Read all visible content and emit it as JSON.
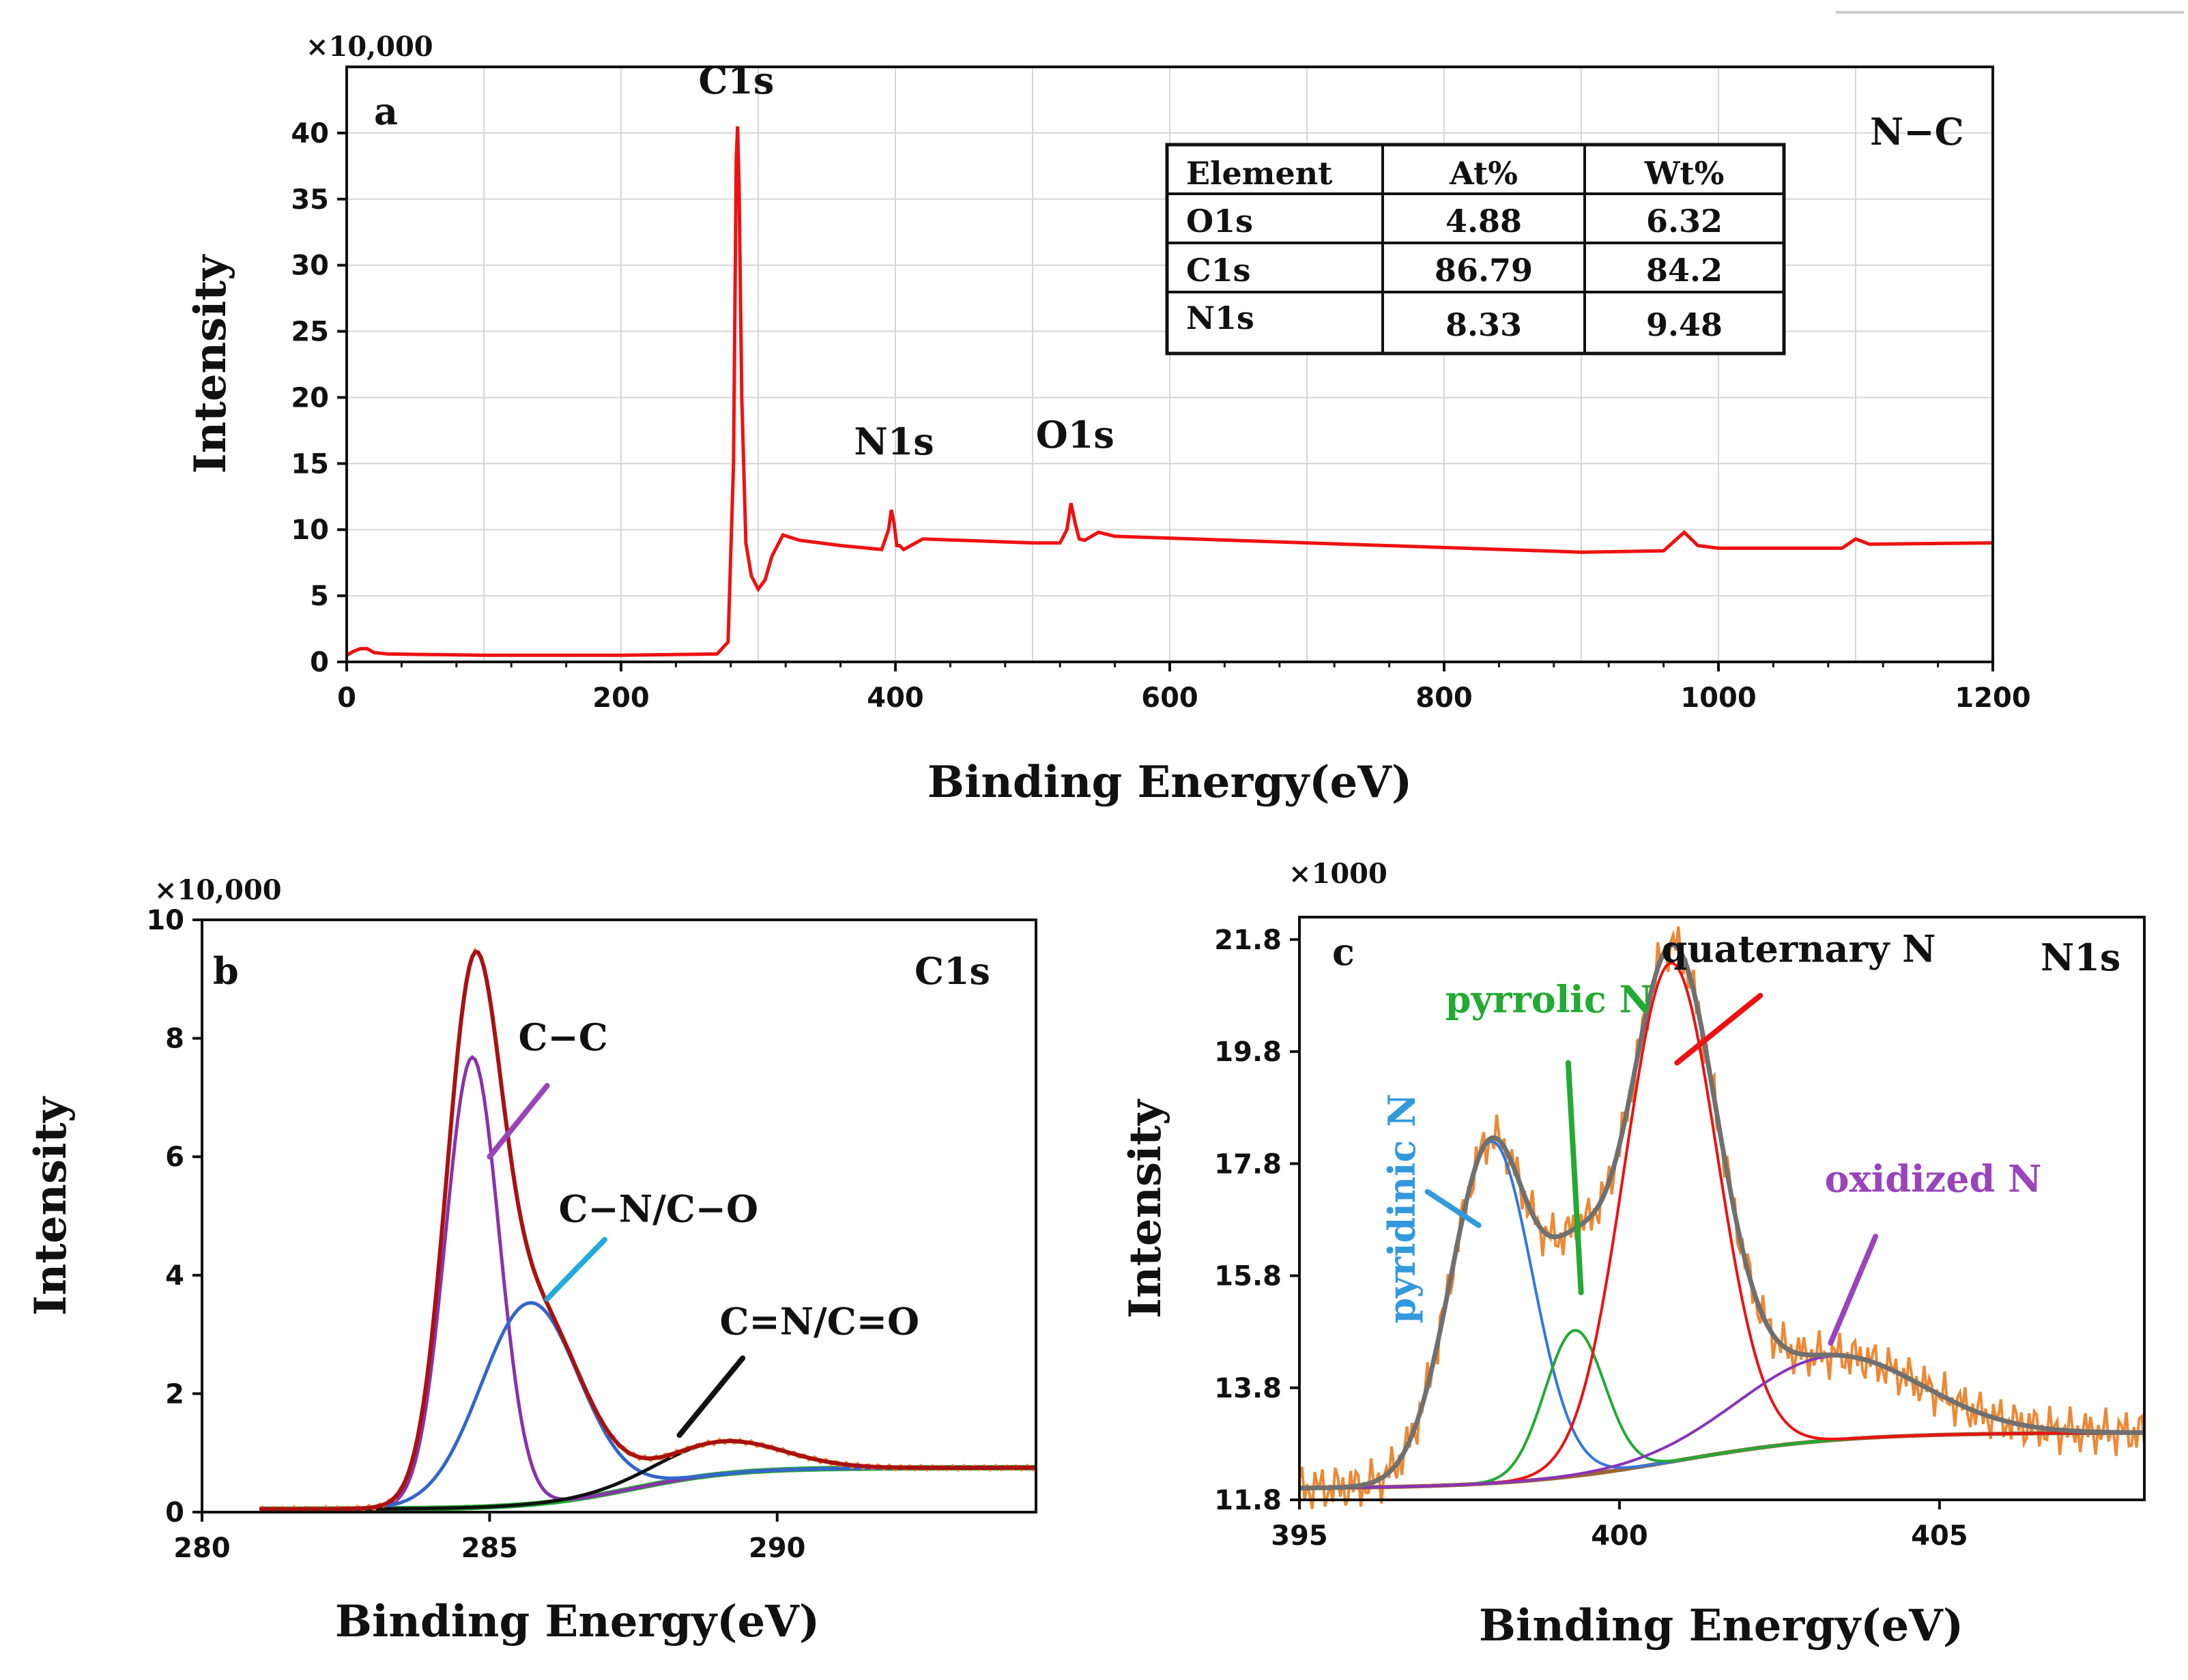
{
  "colors": {
    "survey": "#ee1111",
    "raw": "#ee8833",
    "envelope_c1s": "#aa1111",
    "envelope_n1s": "#707070",
    "cc": "#8833aa",
    "cn": "#3366cc",
    "cdn": "#22aa33",
    "pyridinic": "#3377dd",
    "pyrrolic": "#22aa33",
    "quaternary": "#ee1111",
    "oxidized": "#8833bb",
    "background_c1s": "#22aa33",
    "background_n1s": "#996633",
    "arrow_cc": "#9944bb",
    "arrow_cn": "#22aadd",
    "arrow_cdn": "#111111",
    "label_pyridinic": "#3399dd",
    "label_pyrrolic": "#22aa33",
    "label_quaternary": "#111111",
    "label_oxidized": "#9944bb"
  },
  "chart_data": [
    {
      "id": "a",
      "type": "line",
      "panel_label": "a",
      "sample_label": "N−C",
      "scale_label": "×10,000",
      "xlabel": "Binding Energy(eV)",
      "ylabel": "Intensity",
      "xlim": [
        0,
        1200
      ],
      "ylim": [
        0,
        45
      ],
      "xticks": [
        0,
        200,
        400,
        600,
        800,
        1000,
        1200
      ],
      "yticks": [
        0,
        5,
        10,
        15,
        20,
        25,
        30,
        35,
        40
      ],
      "series": [
        {
          "name": "survey",
          "x": [
            0,
            5,
            10,
            15,
            20,
            30,
            100,
            200,
            270,
            278,
            282,
            284,
            285,
            286,
            288,
            291,
            295,
            300,
            305,
            310,
            318,
            330,
            360,
            390,
            395,
            397,
            399,
            401,
            403,
            406,
            420,
            500,
            520,
            525,
            528,
            531,
            534,
            538,
            548,
            560,
            700,
            900,
            960,
            975,
            985,
            1000,
            1090,
            1100,
            1110,
            1200
          ],
          "y": [
            0.5,
            0.8,
            1.0,
            1.0,
            0.7,
            0.6,
            0.5,
            0.5,
            0.6,
            1.5,
            15,
            38,
            40.5,
            36,
            20,
            9,
            6.5,
            5.5,
            6.2,
            8.0,
            9.6,
            9.2,
            8.8,
            8.5,
            10.0,
            11.5,
            10.5,
            8.8,
            8.8,
            8.5,
            9.3,
            9.0,
            9.0,
            10.0,
            12.0,
            10.5,
            9.3,
            9.2,
            9.8,
            9.5,
            9.0,
            8.3,
            8.4,
            9.8,
            8.8,
            8.6,
            8.6,
            9.3,
            8.9,
            9.0
          ]
        }
      ],
      "annotations": [
        {
          "text": "C1s",
          "x": 284,
          "y": 43
        },
        {
          "text": "N1s",
          "x": 399,
          "y": 15.7
        },
        {
          "text": "O1s",
          "x": 531,
          "y": 16.2
        }
      ],
      "table": {
        "headers": [
          "Element",
          "At%",
          "Wt%"
        ],
        "rows": [
          [
            "O1s",
            "4.88",
            "6.32"
          ],
          [
            "C1s",
            "86.79",
            "84.2"
          ],
          [
            "N1s",
            "8.33",
            "9.48"
          ]
        ]
      }
    },
    {
      "id": "b",
      "type": "line",
      "panel_label": "b",
      "peak_label": "C1s",
      "scale_label": "×10,000",
      "xlabel": "Binding Energy(eV)",
      "ylabel": "Intensity",
      "xlim": [
        280,
        294.5
      ],
      "ylim": [
        0,
        10
      ],
      "xticks": [
        280,
        285,
        290
      ],
      "yticks": [
        0,
        2,
        4,
        6,
        8,
        10
      ],
      "background": {
        "start_x": 281,
        "start_y": 0.05,
        "end_y": 0.75,
        "center": 287.5,
        "width": 0.9
      },
      "components": [
        {
          "name": "C−C",
          "center": 284.7,
          "height": 7.6,
          "fwhm": 1.1
        },
        {
          "name": "C−N/C−O",
          "center": 285.7,
          "height": 3.4,
          "fwhm": 2.0
        },
        {
          "name": "C=N/C=O",
          "center": 289.0,
          "height": 0.55,
          "fwhm": 2.5
        }
      ],
      "annotations": [
        {
          "text": "C−C",
          "label_x": 285.5,
          "label_y": 7.8,
          "arrow_from": [
            286.0,
            7.2
          ],
          "arrow_to": [
            285.0,
            6.0
          ]
        },
        {
          "text": "C−N/C−O",
          "label_x": 286.2,
          "label_y": 4.9,
          "arrow_from": [
            287.0,
            4.6
          ],
          "arrow_to": [
            286.0,
            3.6
          ]
        },
        {
          "text": "C=N/C=O",
          "label_x": 289.0,
          "label_y": 3.0,
          "arrow_from": [
            289.4,
            2.6
          ],
          "arrow_to": [
            288.3,
            1.3
          ]
        }
      ]
    },
    {
      "id": "c",
      "type": "line",
      "panel_label": "c",
      "peak_label": "N1s",
      "scale_label": "×1000",
      "xlabel": "Binding Energy(eV)",
      "ylabel": "Intensity",
      "xlim": [
        395,
        408.2
      ],
      "ylim": [
        11.8,
        22.2
      ],
      "xticks": [
        395,
        400,
        405
      ],
      "yticks": [
        11.8,
        13.8,
        15.8,
        17.8,
        19.8,
        21.8
      ],
      "ytick_labels": [
        "11.8",
        "13.8",
        "15.8",
        "17.8",
        "19.8",
        "21.8"
      ],
      "background": {
        "start_x": 395,
        "start_y": 12.0,
        "end_y": 13.0,
        "center": 400.9,
        "width": 1.3
      },
      "components": [
        {
          "name": "pyridinic N",
          "center": 398.0,
          "height": 6.1,
          "fwhm": 1.5
        },
        {
          "name": "pyrrolic N",
          "center": 399.3,
          "height": 2.6,
          "fwhm": 1.1
        },
        {
          "name": "quaternary N",
          "center": 400.8,
          "height": 8.9,
          "fwhm": 1.7
        },
        {
          "name": "oxidized N",
          "center": 403.3,
          "height": 1.5,
          "fwhm": 3.3
        }
      ],
      "annotations": [
        {
          "text": "pyridinic N",
          "label_x": 396.8,
          "label_y": 17.0,
          "arrow_from": [
            397.0,
            17.3
          ],
          "arrow_to": [
            397.8,
            16.7
          ]
        },
        {
          "text": "pyrrolic N",
          "label_x": 398.9,
          "label_y": 20.5,
          "arrow_from": [
            399.2,
            19.6
          ],
          "arrow_to": [
            399.4,
            15.5
          ]
        },
        {
          "text": "quaternary N",
          "label_x": 402.8,
          "label_y": 21.4,
          "arrow_from": [
            402.2,
            20.8
          ],
          "arrow_to": [
            400.9,
            19.6
          ]
        },
        {
          "text": "oxidized N",
          "label_x": 404.9,
          "label_y": 17.3,
          "arrow_from": [
            404.0,
            16.5
          ],
          "arrow_to": [
            403.3,
            14.6
          ]
        }
      ]
    }
  ]
}
